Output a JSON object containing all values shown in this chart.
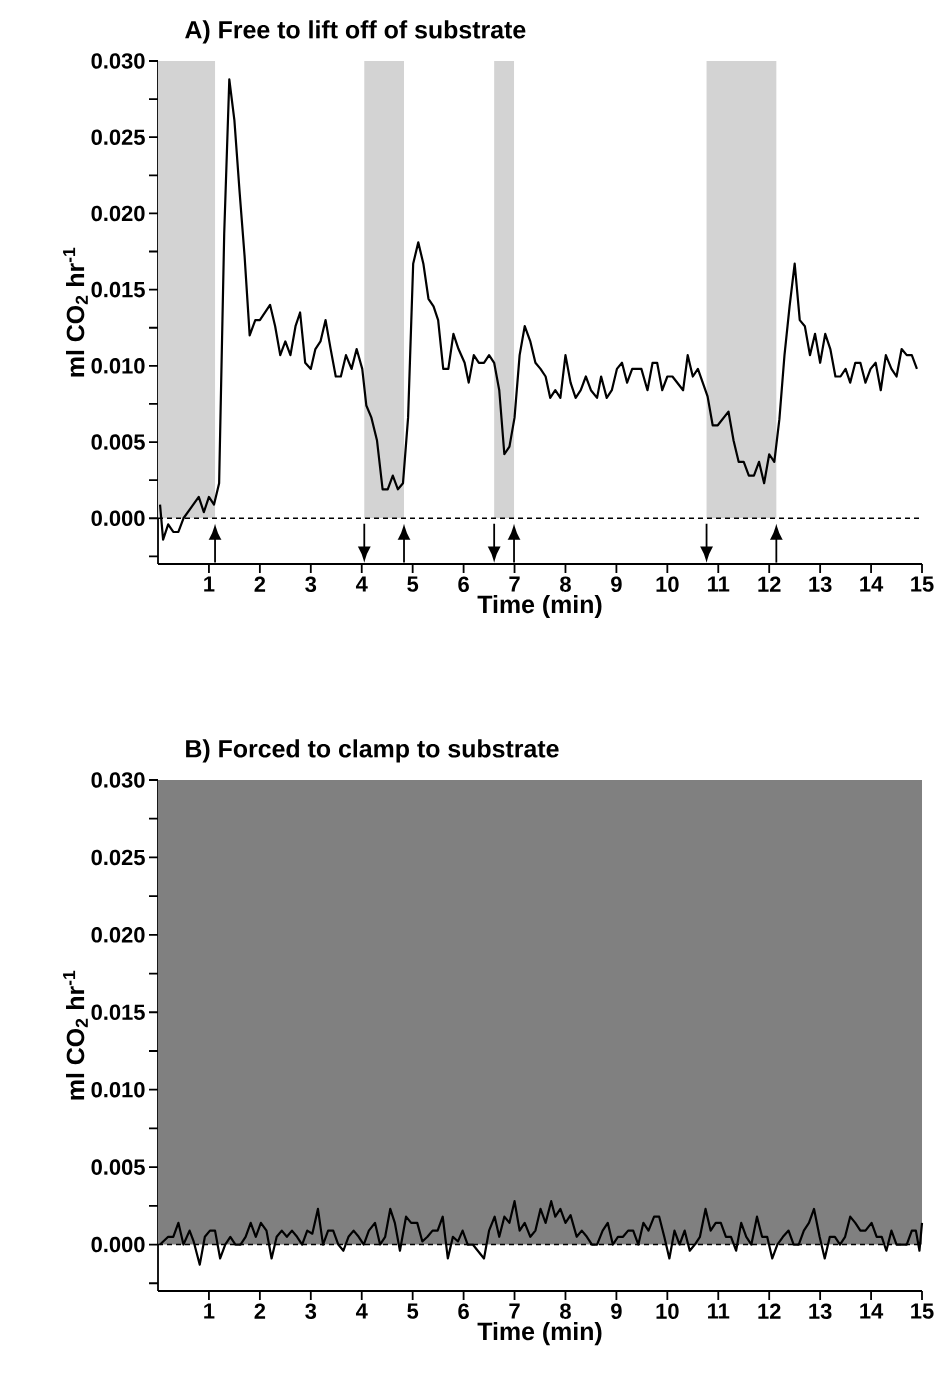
{
  "chart_data": [
    {
      "type": "line",
      "title": "A) Free to lift off of substrate",
      "xlabel": "Time (min)",
      "ylabel": "ml CO$_{2}$ hr$^{-1}$",
      "color": "#000000",
      "x": [
        0.04,
        0.1,
        0.2,
        0.3,
        0.4,
        0.5,
        0.8,
        0.9,
        1.0,
        1.1,
        1.2,
        1.3,
        1.4,
        1.5,
        1.6,
        1.7,
        1.8,
        1.91,
        2.0,
        2.2,
        2.3,
        2.4,
        2.5,
        2.6,
        2.7,
        2.79,
        2.89,
        3.0,
        3.09,
        3.19,
        3.29,
        3.39,
        3.49,
        3.59,
        3.69,
        3.8,
        3.9,
        4.01,
        4.09,
        4.19,
        4.3,
        4.41,
        4.51,
        4.61,
        4.71,
        4.81,
        4.91,
        5.01,
        5.11,
        5.21,
        5.31,
        5.41,
        5.5,
        5.6,
        5.7,
        5.8,
        5.9,
        6.02,
        6.1,
        6.2,
        6.3,
        6.4,
        6.5,
        6.6,
        6.7,
        6.8,
        6.9,
        7.0,
        7.1,
        7.2,
        7.31,
        7.41,
        7.51,
        7.61,
        7.7,
        7.8,
        7.9,
        8.0,
        8.1,
        8.2,
        8.3,
        8.4,
        8.5,
        8.62,
        8.7,
        8.81,
        8.91,
        9.01,
        9.11,
        9.21,
        9.31,
        9.49,
        9.61,
        9.71,
        9.8,
        9.9,
        10.0,
        10.1,
        10.31,
        10.4,
        10.5,
        10.6,
        10.79,
        10.89,
        10.99,
        11.2,
        11.3,
        11.4,
        11.5,
        11.6,
        11.7,
        11.8,
        11.9,
        12.0,
        12.1,
        12.2,
        12.3,
        12.4,
        12.5,
        12.6,
        12.7,
        12.8,
        12.9,
        13.0,
        13.1,
        13.2,
        13.3,
        13.4,
        13.5,
        13.59,
        13.69,
        13.79,
        13.89,
        13.99,
        14.09,
        14.19,
        14.29,
        14.4,
        14.5,
        14.6,
        14.7,
        14.8,
        14.9
      ],
      "values": [
        0.0009,
        -0.0014,
        -0.0004,
        -0.0009,
        -0.0009,
        0.0,
        0.0014,
        0.0004,
        0.0014,
        0.0009,
        0.0023,
        0.0187,
        0.0288,
        0.0261,
        0.0215,
        0.0172,
        0.012,
        0.013,
        0.013,
        0.014,
        0.0126,
        0.0107,
        0.0116,
        0.0107,
        0.0126,
        0.0135,
        0.0102,
        0.0098,
        0.0111,
        0.0116,
        0.013,
        0.0111,
        0.0093,
        0.0093,
        0.0107,
        0.0098,
        0.0111,
        0.0098,
        0.0074,
        0.0066,
        0.0051,
        0.0019,
        0.0019,
        0.0028,
        0.0019,
        0.0023,
        0.0066,
        0.0167,
        0.0181,
        0.0167,
        0.0144,
        0.0139,
        0.013,
        0.0098,
        0.0098,
        0.0121,
        0.0111,
        0.0102,
        0.0089,
        0.0107,
        0.0102,
        0.0102,
        0.0107,
        0.0102,
        0.0084,
        0.0042,
        0.0047,
        0.0066,
        0.0107,
        0.0126,
        0.0116,
        0.0102,
        0.0098,
        0.0093,
        0.0079,
        0.0084,
        0.0079,
        0.0107,
        0.0089,
        0.0079,
        0.0084,
        0.0093,
        0.0084,
        0.0079,
        0.0093,
        0.0079,
        0.0084,
        0.0098,
        0.0102,
        0.0089,
        0.0098,
        0.0098,
        0.0084,
        0.0102,
        0.0102,
        0.0084,
        0.0093,
        0.0093,
        0.0084,
        0.0107,
        0.0093,
        0.0098,
        0.008,
        0.0061,
        0.0061,
        0.007,
        0.0051,
        0.0037,
        0.0037,
        0.0028,
        0.0028,
        0.0037,
        0.0023,
        0.0042,
        0.0037,
        0.0065,
        0.0107,
        0.0139,
        0.0167,
        0.013,
        0.0126,
        0.0107,
        0.0121,
        0.0102,
        0.0121,
        0.0111,
        0.0093,
        0.0093,
        0.0098,
        0.0089,
        0.0102,
        0.0102,
        0.0089,
        0.0098,
        0.0102,
        0.0084,
        0.0107,
        0.0098,
        0.0093,
        0.0111,
        0.0107,
        0.0107,
        0.0098
      ],
      "xlim": [
        0,
        15
      ],
      "ylim": [
        -0.003,
        0.03
      ],
      "xticks": [
        1,
        2,
        3,
        4,
        5,
        6,
        7,
        8,
        9,
        10,
        11,
        12,
        13,
        14,
        15
      ],
      "yticks": [
        {
          "value": -0.0025,
          "label": null
        },
        {
          "value": 0,
          "label": "0.000"
        },
        {
          "value": 0.0025,
          "label": null
        },
        {
          "value": 0.005,
          "label": "0.005"
        },
        {
          "value": 0.0075,
          "label": null
        },
        {
          "value": 0.01,
          "label": "0.010"
        },
        {
          "value": 0.0125,
          "label": null
        },
        {
          "value": 0.015,
          "label": "0.015"
        },
        {
          "value": 0.0175,
          "label": null
        },
        {
          "value": 0.02,
          "label": "0.020"
        },
        {
          "value": 0.0225,
          "label": null
        },
        {
          "value": 0.025,
          "label": "0.025"
        },
        {
          "value": 0.0275,
          "label": null
        },
        {
          "value": 0.03,
          "label": "0.030"
        }
      ],
      "ref_lines": [
        {
          "axis": "y",
          "value": 0,
          "line_style": "dashed",
          "color": "#000000"
        }
      ],
      "bands": [
        {
          "axis": "x",
          "from": 0,
          "to": 1.12,
          "color": "#d3d3d3"
        },
        {
          "axis": "x",
          "from": 4.05,
          "to": 4.83,
          "color": "#d3d3d3"
        },
        {
          "axis": "x",
          "from": 6.6,
          "to": 6.99,
          "color": "#d3d3d3"
        },
        {
          "axis": "x",
          "from": 10.77,
          "to": 12.14,
          "color": "#d3d3d3"
        }
      ]
    },
    {
      "type": "line",
      "title": "B) Forced to clamp to substrate",
      "xlabel": "Time (min)",
      "ylabel": "ml CO$_{2}$ hr$^{-1}$",
      "color": "#000000",
      "x": [
        0.04,
        0.2,
        0.3,
        0.4,
        0.5,
        0.62,
        0.7,
        0.82,
        0.92,
        1.02,
        1.12,
        1.22,
        1.32,
        1.42,
        1.52,
        1.62,
        1.72,
        1.82,
        1.92,
        2.02,
        2.13,
        2.23,
        2.33,
        2.43,
        2.53,
        2.63,
        2.73,
        2.83,
        2.93,
        3.03,
        3.14,
        3.24,
        3.34,
        3.44,
        3.54,
        3.64,
        3.74,
        3.84,
        3.94,
        4.04,
        4.14,
        4.26,
        4.36,
        4.46,
        4.56,
        4.65,
        4.75,
        4.87,
        4.97,
        5.09,
        5.19,
        5.29,
        5.39,
        5.49,
        5.59,
        5.69,
        5.79,
        5.89,
        5.98,
        6.08,
        6.18,
        6.4,
        6.5,
        6.61,
        6.7,
        6.8,
        6.9,
        7.0,
        7.1,
        7.2,
        7.31,
        7.41,
        7.51,
        7.61,
        7.72,
        7.8,
        7.9,
        8.0,
        8.1,
        8.22,
        8.32,
        8.42,
        8.52,
        8.62,
        8.73,
        8.83,
        8.93,
        9.03,
        9.13,
        9.23,
        9.33,
        9.43,
        9.53,
        9.63,
        9.74,
        9.84,
        9.94,
        10.04,
        10.14,
        10.24,
        10.34,
        10.44,
        10.54,
        10.64,
        10.75,
        10.85,
        10.95,
        11.05,
        11.15,
        11.25,
        11.35,
        11.45,
        11.55,
        11.65,
        11.76,
        11.86,
        11.96,
        12.06,
        12.16,
        12.27,
        12.38,
        12.48,
        12.58,
        12.68,
        12.78,
        12.88,
        12.99,
        13.09,
        13.19,
        13.29,
        13.39,
        13.49,
        13.59,
        13.69,
        13.79,
        13.89,
        14.01,
        14.11,
        14.21,
        14.3,
        14.4,
        14.5,
        14.6,
        14.7,
        14.8,
        14.88,
        14.95,
        15.0
      ],
      "values": [
        0,
        0.0005,
        0.0005,
        0.0014,
        0,
        0.0009,
        0.0002,
        -0.0013,
        0.0005,
        0.0009,
        0.0009,
        -0.0009,
        0,
        0.0005,
        0,
        0,
        0.0005,
        0.0014,
        0.0005,
        0.0014,
        0.0009,
        -0.0009,
        0.0005,
        0.0009,
        0.0005,
        0.0009,
        0.0005,
        0,
        0.0009,
        0.0007,
        0.0023,
        0,
        0.0009,
        0.0009,
        0,
        -0.0004,
        0.0005,
        0.0009,
        0.0005,
        0,
        0.0009,
        0.0014,
        0,
        0.0005,
        0.0023,
        0.0014,
        -0.0004,
        0.0018,
        0.0014,
        0.0014,
        0.0002,
        0.0005,
        0.0009,
        0.0009,
        0.0018,
        -0.0009,
        0.0005,
        0.0002,
        0.0009,
        0,
        0,
        -0.0009,
        0.0009,
        0.0018,
        0.0005,
        0.0018,
        0.0014,
        0.0028,
        0.0009,
        0.0014,
        0.0005,
        0.0009,
        0.0023,
        0.0014,
        0.0028,
        0.0018,
        0.0023,
        0.0014,
        0.0019,
        0.0005,
        0.0009,
        0.0005,
        0,
        0,
        0.0009,
        0.0014,
        0,
        0.0005,
        0.0005,
        0.0009,
        0.0009,
        0,
        0.0014,
        0.0009,
        0.0018,
        0.0018,
        0.0005,
        -0.0009,
        0.0009,
        0,
        0.0009,
        -0.0004,
        0,
        0.0005,
        0.0023,
        0.0009,
        0.0014,
        0.0014,
        0.0005,
        0.0005,
        -0.0004,
        0.0014,
        0.0005,
        0,
        0.0018,
        0.0005,
        0.0005,
        -0.0009,
        0,
        0.0005,
        0.0009,
        0,
        0,
        0.0009,
        0.0014,
        0.0023,
        0.0005,
        -0.0009,
        0.0005,
        0.0005,
        0,
        0.0005,
        0.0018,
        0.0014,
        0.0009,
        0.0009,
        0.0014,
        0.0005,
        0.0005,
        -0.0004,
        0.0009,
        0,
        0,
        0,
        0.0009,
        0.0009,
        -0.0004,
        0.0014
      ],
      "xlim": [
        0,
        15
      ],
      "ylim": [
        -0.003,
        0.03
      ],
      "xticks": [
        1,
        2,
        3,
        4,
        5,
        6,
        7,
        8,
        9,
        10,
        11,
        12,
        13,
        14,
        15
      ],
      "yticks": [
        {
          "value": -0.0025,
          "label": null
        },
        {
          "value": 0,
          "label": "0.000"
        },
        {
          "value": 0.0025,
          "label": null
        },
        {
          "value": 0.005,
          "label": "0.005"
        },
        {
          "value": 0.0075,
          "label": null
        },
        {
          "value": 0.01,
          "label": "0.010"
        },
        {
          "value": 0.0125,
          "label": null
        },
        {
          "value": 0.015,
          "label": "0.015"
        },
        {
          "value": 0.0175,
          "label": null
        },
        {
          "value": 0.02,
          "label": "0.020"
        },
        {
          "value": 0.0225,
          "label": null
        },
        {
          "value": 0.025,
          "label": "0.025"
        },
        {
          "value": 0.0275,
          "label": null
        },
        {
          "value": 0.03,
          "label": "0.030"
        }
      ],
      "ref_lines": [
        {
          "axis": "y",
          "value": 0,
          "line_style": "dashed",
          "color": "#000000"
        }
      ],
      "bands": [
        {
          "axis": "y",
          "from": 0,
          "to": 0.03,
          "color": "#808080"
        }
      ]
    }
  ]
}
